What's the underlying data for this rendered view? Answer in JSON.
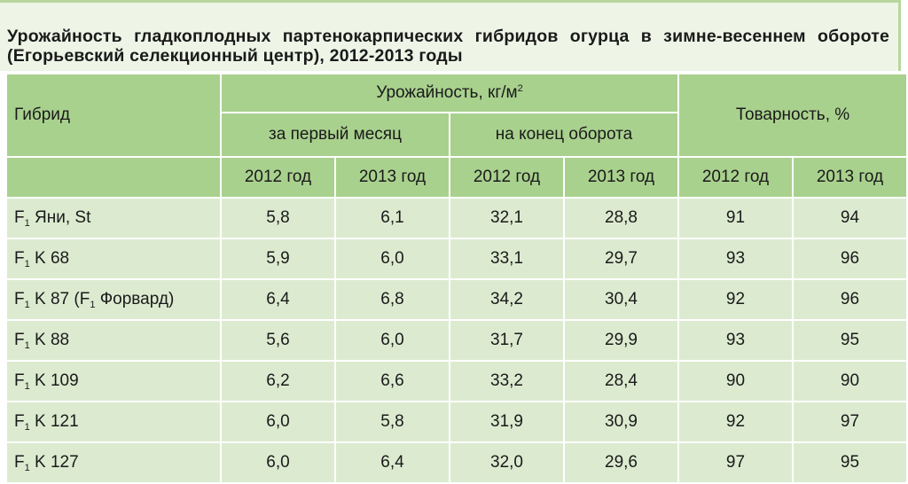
{
  "header": {
    "title": "Урожайность гладкоплодных партенокарпических гибридов огурца в зимне-весеннем обороте (Егорьевский селекционный центр), 2012-2013 годы"
  },
  "table": {
    "col_hybrid": "Гибрид",
    "col_yield": [
      "Урожайность, кг/м",
      "2"
    ],
    "col_first_month": "за первый месяц",
    "col_end": "на конец оборота",
    "col_market": "Товарность, %",
    "years": [
      "2012 год",
      "2013 год",
      "2012 год",
      "2013 год",
      "2012 год",
      "2013 год"
    ],
    "rows": [
      {
        "hybrid": [
          "F",
          "1",
          " Яни, St"
        ],
        "values": [
          "5,8",
          "6,1",
          "32,1",
          "28,8",
          "91",
          "94"
        ]
      },
      {
        "hybrid": [
          "F",
          "1",
          " K 68"
        ],
        "values": [
          "5,9",
          "6,0",
          "33,1",
          "29,7",
          "93",
          "96"
        ]
      },
      {
        "hybrid": [
          "F",
          "1",
          " K 87 (F",
          "1",
          " Форвард)"
        ],
        "values": [
          "6,4",
          "6,8",
          "34,2",
          "30,4",
          "92",
          "96"
        ]
      },
      {
        "hybrid": [
          "F",
          "1",
          " K 88"
        ],
        "values": [
          "5,6",
          "6,0",
          "31,7",
          "29,9",
          "93",
          "95"
        ]
      },
      {
        "hybrid": [
          "F",
          "1",
          " K 109"
        ],
        "values": [
          "6,2",
          "6,6",
          "33,2",
          "28,4",
          "90",
          "90"
        ]
      },
      {
        "hybrid": [
          "F",
          "1",
          " K 121"
        ],
        "values": [
          "6,0",
          "5,8",
          "31,9",
          "30,9",
          "92",
          "97"
        ]
      },
      {
        "hybrid": [
          "F",
          "1",
          " K 127"
        ],
        "values": [
          "6,0",
          "6,4",
          "32,0",
          "29,6",
          "97",
          "95"
        ]
      }
    ]
  }
}
